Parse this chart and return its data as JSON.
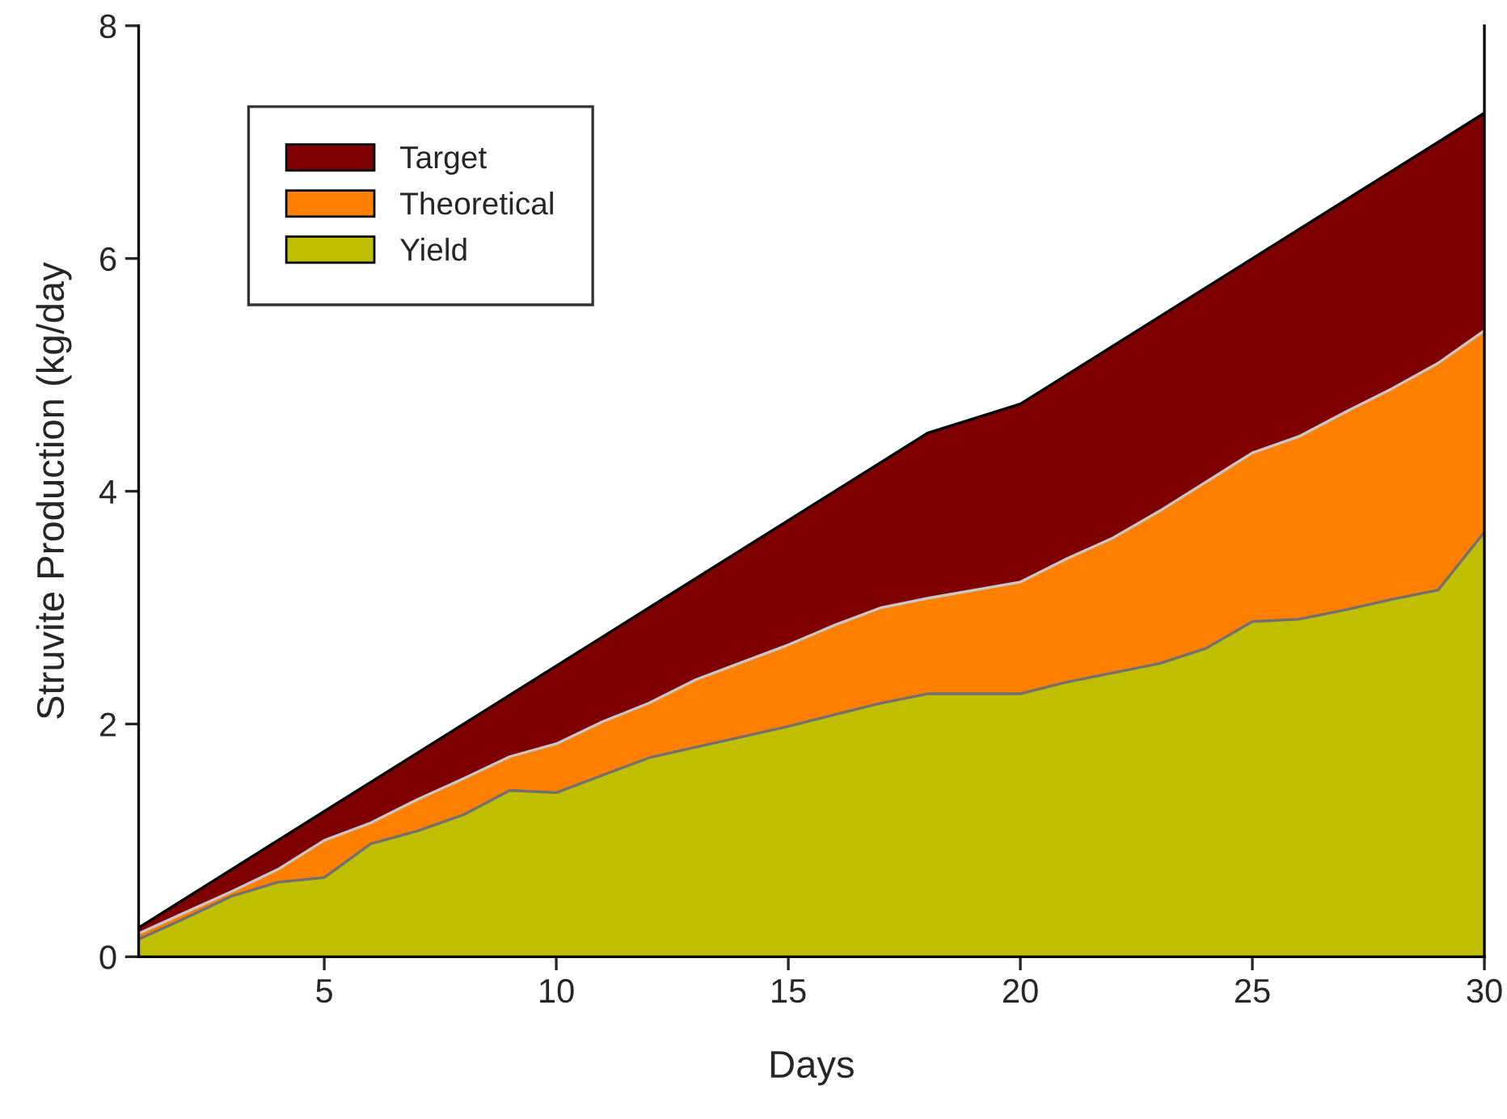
{
  "chart_data": {
    "type": "area",
    "xlabel": "Days",
    "ylabel": "Struvite Production (kg/day",
    "xlim": [
      1,
      30
    ],
    "xticks": [
      5,
      10,
      15,
      20,
      25,
      30
    ],
    "ylim": [
      0,
      8
    ],
    "yticks": [
      0,
      2,
      4,
      6,
      8
    ],
    "grid": false,
    "legend": "top left",
    "series": [
      {
        "name": "Target",
        "color": "#7f0000",
        "x": [
          1,
          18,
          20,
          30
        ],
        "values": [
          0.25,
          4.5,
          4.75,
          7.25
        ]
      },
      {
        "name": "Theoretical",
        "color": "#ff7f00",
        "x": [
          1,
          2,
          3,
          4,
          5,
          6,
          7,
          8,
          9,
          10,
          11,
          12,
          13,
          14,
          15,
          16,
          17,
          18,
          20,
          21,
          22,
          23,
          24,
          25,
          26,
          27,
          28,
          29,
          30
        ],
        "values": [
          0.2,
          0.38,
          0.56,
          0.75,
          1.0,
          1.15,
          1.35,
          1.53,
          1.72,
          1.83,
          2.02,
          2.18,
          2.38,
          2.53,
          2.68,
          2.85,
          3.0,
          3.08,
          3.22,
          3.42,
          3.6,
          3.83,
          4.08,
          4.33,
          4.47,
          4.68,
          4.88,
          5.1,
          5.38
        ]
      },
      {
        "name": "Yield",
        "color": "#bfbf00",
        "x": [
          1,
          2,
          3,
          4,
          5,
          6,
          7,
          8,
          9,
          10,
          11,
          12,
          13,
          14,
          15,
          16,
          17,
          18,
          20,
          21,
          22,
          23,
          24,
          25,
          26,
          27,
          28,
          29,
          30
        ],
        "values": [
          0.15,
          0.33,
          0.52,
          0.64,
          0.68,
          0.97,
          1.08,
          1.22,
          1.43,
          1.41,
          1.56,
          1.71,
          1.8,
          1.89,
          1.98,
          2.08,
          2.18,
          2.26,
          2.26,
          2.36,
          2.44,
          2.52,
          2.65,
          2.88,
          2.9,
          2.98,
          3.07,
          3.15,
          3.65
        ]
      }
    ]
  }
}
